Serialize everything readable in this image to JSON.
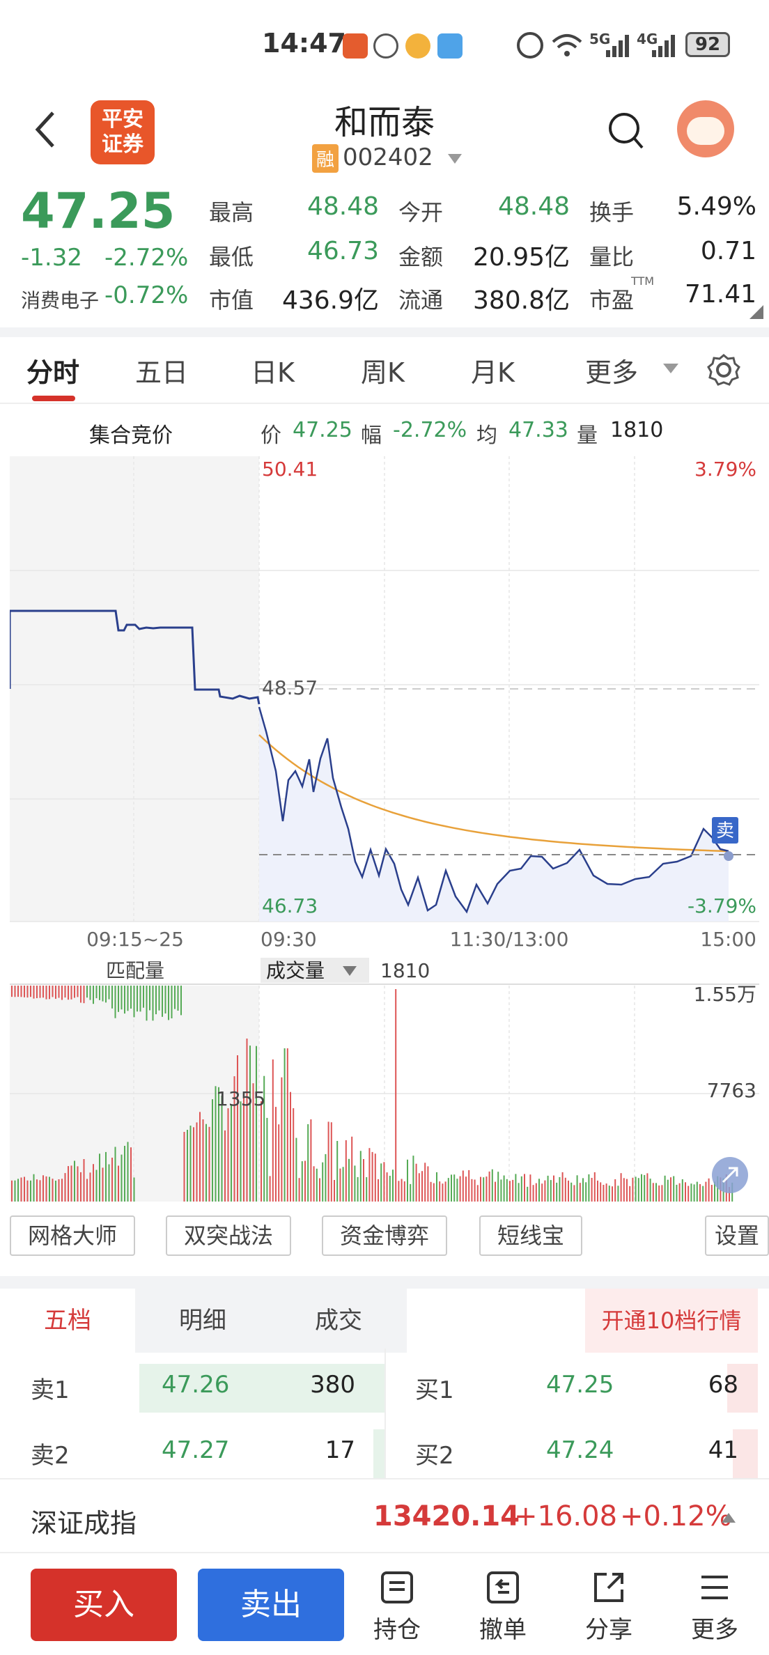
{
  "status_bar": {
    "time": "14:47",
    "network_5g": "5G",
    "network_4g": "4G",
    "battery": "92"
  },
  "header": {
    "back_icon": "chevron-left-icon",
    "logo_text_line1": "平安",
    "logo_text_line2": "证券",
    "stock_name": "和而泰",
    "margin_badge": "融",
    "stock_code": "002402",
    "search_icon": "search-icon",
    "avatar_icon": "assistant-avatar-icon"
  },
  "quote": {
    "price": "47.25",
    "change": "-1.32",
    "change_pct": "-2.72%",
    "sector_name": "消费电子",
    "sector_change": "-0.72%",
    "fields": [
      {
        "label": "最高",
        "value": "48.48",
        "color": "#3b9a5a"
      },
      {
        "label": "今开",
        "value": "48.48",
        "color": "#3b9a5a"
      },
      {
        "label": "换手",
        "value": "5.49%",
        "color": "#222222"
      },
      {
        "label": "最低",
        "value": "46.73",
        "color": "#3b9a5a"
      },
      {
        "label": "金额",
        "value": "20.95亿",
        "color": "#222222"
      },
      {
        "label": "量比",
        "value": "0.71",
        "color": "#222222"
      },
      {
        "label": "市值",
        "value": "436.9亿",
        "color": "#222222"
      },
      {
        "label": "流通",
        "value": "380.8亿",
        "color": "#222222"
      },
      {
        "label": "市盈",
        "value": "71.41",
        "color": "#222222"
      }
    ],
    "ttm_label": "TTM"
  },
  "tabs": [
    "分时",
    "五日",
    "日K",
    "周K",
    "月K",
    "更多"
  ],
  "info_line": {
    "section": "集合竞价",
    "price_label": "价",
    "price": "47.25",
    "amp_label": "幅",
    "amp": "-2.72%",
    "avg_label": "均",
    "avg": "47.33",
    "vol_label": "量",
    "vol": "1810"
  },
  "price_chart": {
    "top_price": "50.41",
    "mid_price": "48.57",
    "bottom_price": "46.73",
    "top_pct": "3.79%",
    "bottom_pct": "-3.79%",
    "x_labels": [
      "09:15~25",
      "09:30",
      "11:30/13:00",
      "15:00"
    ],
    "sell_marker": "卖"
  },
  "volume_chart": {
    "left_title": "匹配量",
    "dropdown_label": "成交量",
    "current_vol": "1810",
    "top_label": "1.55万",
    "mid_label": "7763",
    "auction_label": "1355"
  },
  "chips": [
    "网格大师",
    "双突战法",
    "资金博弈",
    "短线宝",
    "设置"
  ],
  "orderbook": {
    "tabs": [
      "五档",
      "明细",
      "成交"
    ],
    "open10": "开通10档行情",
    "rows": [
      {
        "sell_label": "卖1",
        "sell_price": "47.26",
        "sell_vol": "380",
        "buy_label": "买1",
        "buy_price": "47.25",
        "buy_vol": "68"
      },
      {
        "sell_label": "卖2",
        "sell_price": "47.27",
        "sell_vol": "17",
        "buy_label": "买2",
        "buy_price": "47.24",
        "buy_vol": "41"
      }
    ]
  },
  "index_bar": {
    "name": "深证成指",
    "value": "13420.14",
    "change": "+16.08",
    "change_pct": "+0.12%"
  },
  "bottom_bar": {
    "buy": "买入",
    "sell": "卖出",
    "items": [
      "持仓",
      "撤单",
      "分享",
      "更多"
    ]
  },
  "colors": {
    "up": "#d53a3a",
    "down": "#3b9a5a",
    "price_line": "#2a3f8c",
    "avg_line": "#e8a13a",
    "buy_button": "#d5322a",
    "sell_button": "#2f6fde"
  }
}
